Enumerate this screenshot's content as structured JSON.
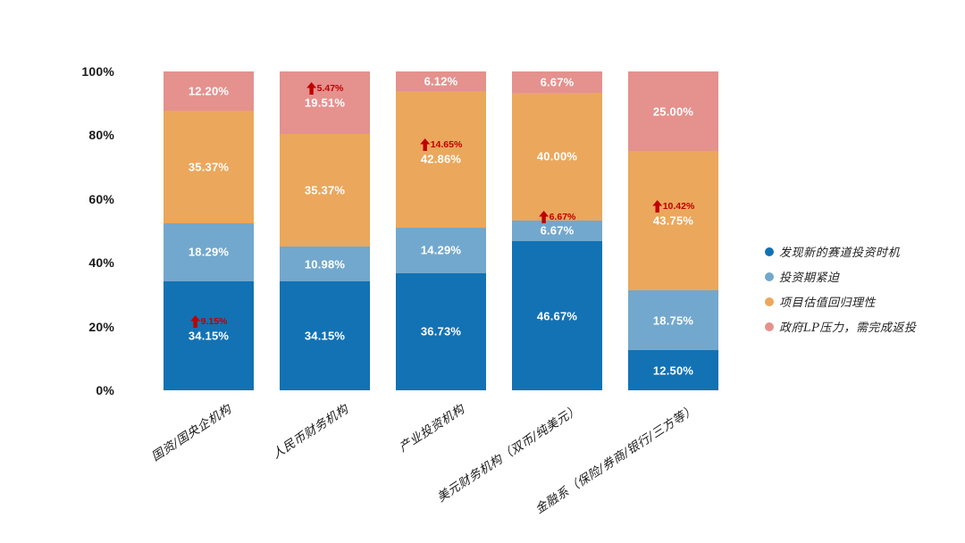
{
  "colors": {
    "dark_blue": "#1272B4",
    "light_blue": "#72A8CD",
    "orange": "#EBA75C",
    "pink": "#E5918E",
    "annotation_red": "#C00000",
    "axis_text": "#1A1A1A"
  },
  "chart_data": {
    "type": "bar",
    "stacked": true,
    "units": "percent",
    "title": "",
    "xlabel": "",
    "ylabel": "",
    "ylim": [
      0,
      100
    ],
    "grid": false,
    "legend_position": "right",
    "yticks": [
      "0%",
      "20%",
      "40%",
      "60%",
      "80%",
      "100%"
    ],
    "categories": [
      "国资/国央企机构",
      "人民币财务机构",
      "产业投资机构",
      "美元财务机构（双币/纯美元）",
      "金融系（保险/券商/银行/三方等）"
    ],
    "series": [
      {
        "name": "发现新的赛道投资时机",
        "color": "#1272B4",
        "values": [
          34.15,
          34.15,
          36.73,
          46.67,
          12.5
        ]
      },
      {
        "name": "投资期紧迫",
        "color": "#72A8CD",
        "values": [
          18.29,
          10.98,
          14.29,
          6.67,
          18.75
        ]
      },
      {
        "name": "项目估值回归理性",
        "color": "#EBA75C",
        "values": [
          35.37,
          35.37,
          42.86,
          40.0,
          43.75
        ]
      },
      {
        "name": "政府LP压力，需完成返投",
        "color": "#E5918E",
        "values": [
          12.2,
          19.51,
          6.12,
          6.67,
          25.0
        ]
      }
    ],
    "annotations": [
      {
        "category_index": 0,
        "series_index": 0,
        "symbol": "up-arrow",
        "text": "9.15%"
      },
      {
        "category_index": 1,
        "series_index": 3,
        "symbol": "up-arrow",
        "text": "5.47%"
      },
      {
        "category_index": 2,
        "series_index": 2,
        "symbol": "up-arrow",
        "text": "14.65%"
      },
      {
        "category_index": 3,
        "series_index": 1,
        "symbol": "up-arrow",
        "text": "6.67%"
      },
      {
        "category_index": 4,
        "series_index": 2,
        "symbol": "up-arrow",
        "text": "10.42%"
      }
    ]
  }
}
